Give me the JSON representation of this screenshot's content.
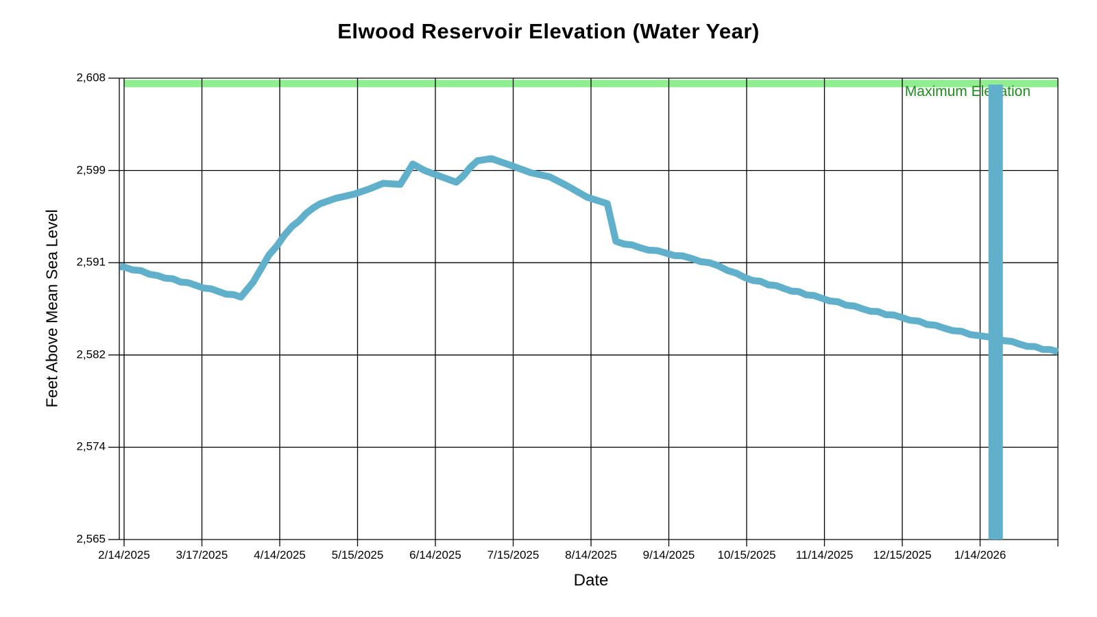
{
  "page": {
    "background": "#FFFFFF"
  },
  "colors": {
    "series_line": "#60AFCB",
    "anomaly_bar": "#60AFCB",
    "max_band": "#90EE90",
    "max_label_text": "#1E8A1E",
    "grid": "#000000",
    "text": "#000000"
  },
  "chart_data": {
    "type": "line",
    "title": "Elwood Reservoir Elevation (Water Year)",
    "xlabel": "Date",
    "ylabel": "Feet Above Mean Sea Level",
    "ylim": [
      2565,
      2608
    ],
    "grid": "on",
    "legend_position": "none",
    "y_ticks": [
      {
        "value": 2565,
        "label": "2,565"
      },
      {
        "value": 2574,
        "label": "2,574"
      },
      {
        "value": 2582,
        "label": "2,582"
      },
      {
        "value": 2591,
        "label": "2,591"
      },
      {
        "value": 2599,
        "label": "2,599"
      },
      {
        "value": 2608,
        "label": "2,608"
      }
    ],
    "x_ticks": [
      "2/14/2025",
      "3/17/2025",
      "4/14/2025",
      "5/15/2025",
      "6/14/2025",
      "7/15/2025",
      "8/14/2025",
      "9/14/2025",
      "10/15/2025",
      "11/14/2025",
      "12/15/2025",
      "1/14/2026"
    ],
    "x_axis_end_date": "2/13/2026",
    "max_elevation": {
      "label": "Maximum Elevation",
      "value": 2607.5,
      "band_thickness_ft": 0.7
    },
    "anomaly_bar": {
      "date": "1/20/2026",
      "t": 11.2,
      "width_t": 0.185,
      "top_elev": 2607.4,
      "bottom_elev": 2565
    },
    "point_format": [
      "t_months_since_first_tick",
      "elevation_ft",
      "date"
    ],
    "series": [
      {
        "name": "Reservoir Elevation",
        "points": [
          [
            0.0,
            2590.4,
            "2/14/2025"
          ],
          [
            0.43,
            2589.6,
            "3/1/2025"
          ],
          [
            0.92,
            2588.7,
            "3/15/2025"
          ],
          [
            1.22,
            2588.1,
            "3/24/2025"
          ],
          [
            1.5,
            2587.6,
            "4/2/2025"
          ],
          [
            1.66,
            2589.0,
            "4/6/2025"
          ],
          [
            1.86,
            2591.5,
            "4/12/2025"
          ],
          [
            2.16,
            2594.2,
            "4/22/2025"
          ],
          [
            2.43,
            2595.9,
            "4/30/2025"
          ],
          [
            2.52,
            2596.3,
            "5/2/2025"
          ],
          [
            2.72,
            2596.8,
            "5/8/2025"
          ],
          [
            2.96,
            2597.2,
            "5/15/2025"
          ],
          [
            3.16,
            2597.7,
            "5/22/2025"
          ],
          [
            3.33,
            2598.2,
            "5/27/2025"
          ],
          [
            3.55,
            2598.1,
            "6/3/2025"
          ],
          [
            3.71,
            2600.0,
            "6/8/2025"
          ],
          [
            3.86,
            2599.4,
            "6/12/2025"
          ],
          [
            4.08,
            2598.8,
            "6/19/2025"
          ],
          [
            4.27,
            2598.3,
            "6/24/2025"
          ],
          [
            4.54,
            2600.3,
            "7/3/2025"
          ],
          [
            4.72,
            2600.5,
            "7/8/2025"
          ],
          [
            4.96,
            2599.9,
            "7/15/2025"
          ],
          [
            5.22,
            2599.2,
            "7/23/2025"
          ],
          [
            5.47,
            2598.8,
            "7/31/2025"
          ],
          [
            5.71,
            2597.9,
            "8/7/2025"
          ],
          [
            5.95,
            2596.9,
            "8/14/2025"
          ],
          [
            6.21,
            2596.3,
            "8/21/2025"
          ],
          [
            6.32,
            2592.8,
            "8/26/2025"
          ],
          [
            6.63,
            2592.2,
            "9/4/2025"
          ],
          [
            6.96,
            2591.7,
            "9/14/2025"
          ],
          [
            7.29,
            2591.2,
            "9/24/2025"
          ],
          [
            7.64,
            2590.5,
            "10/5/2025"
          ],
          [
            7.98,
            2589.4,
            "10/15/2025"
          ],
          [
            8.48,
            2588.4,
            "10/31/2025"
          ],
          [
            8.96,
            2587.5,
            "11/14/2025"
          ],
          [
            9.49,
            2586.5,
            "11/30/2025"
          ],
          [
            9.99,
            2585.7,
            "12/15/2025"
          ],
          [
            10.54,
            2584.7,
            "1/1/2026"
          ],
          [
            10.98,
            2584.0,
            "1/14/2026"
          ],
          [
            11.2,
            2583.8,
            "1/20/2026"
          ],
          [
            11.51,
            2583.2,
            "1/31/2026"
          ],
          [
            12.0,
            2582.5,
            "2/13/2026"
          ]
        ]
      }
    ]
  }
}
